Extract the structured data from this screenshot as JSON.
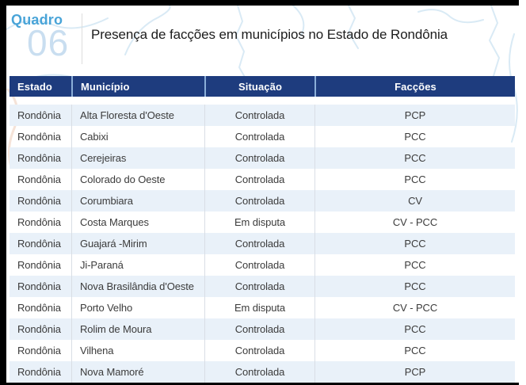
{
  "figure": {
    "kicker": "Quadro",
    "number": "06",
    "title": "Presença de facções em municípios no Estado de Rondônia"
  },
  "table": {
    "columns": [
      "Estado",
      "Município",
      "Situação",
      "Facções"
    ],
    "rows": [
      [
        "Rondônia",
        "Alta Floresta d'Oeste",
        "Controlada",
        "PCP"
      ],
      [
        "Rondônia",
        "Cabixi",
        "Controlada",
        "PCC"
      ],
      [
        "Rondônia",
        "Cerejeiras",
        "Controlada",
        "PCC"
      ],
      [
        "Rondônia",
        "Colorado do Oeste",
        "Controlada",
        "PCC"
      ],
      [
        "Rondônia",
        "Corumbiara",
        "Controlada",
        "CV"
      ],
      [
        "Rondônia",
        "Costa Marques",
        "Em disputa",
        "CV - PCC"
      ],
      [
        "Rondônia",
        "Guajará -Mirim",
        "Controlada",
        "PCC"
      ],
      [
        "Rondônia",
        "Ji-Paraná",
        "Controlada",
        "PCC"
      ],
      [
        "Rondônia",
        "Nova Brasilândia d'Oeste",
        "Controlada",
        "PCC"
      ],
      [
        "Rondônia",
        "Porto Velho",
        "Em disputa",
        "CV - PCC"
      ],
      [
        "Rondônia",
        "Rolim de Moura",
        "Controlada",
        "PCC"
      ],
      [
        "Rondônia",
        "Vilhena",
        "Controlada",
        "PCC"
      ],
      [
        "Rondônia",
        "Nova Mamoré",
        "Controlada",
        "PCP"
      ]
    ]
  },
  "colors": {
    "frame_black": "#000000",
    "header_bg": "#1e3c7e",
    "header_cell_divider": "#8aaed8",
    "row_alt_bg": "#e9f1f9",
    "body_cell_divider": "#d9dee5",
    "kicker_blue": "#49a4d8",
    "figure_number_blue": "#c9def0",
    "map_line_blue": "#d9eaf5",
    "map_line_peach": "#f5e3d8"
  }
}
